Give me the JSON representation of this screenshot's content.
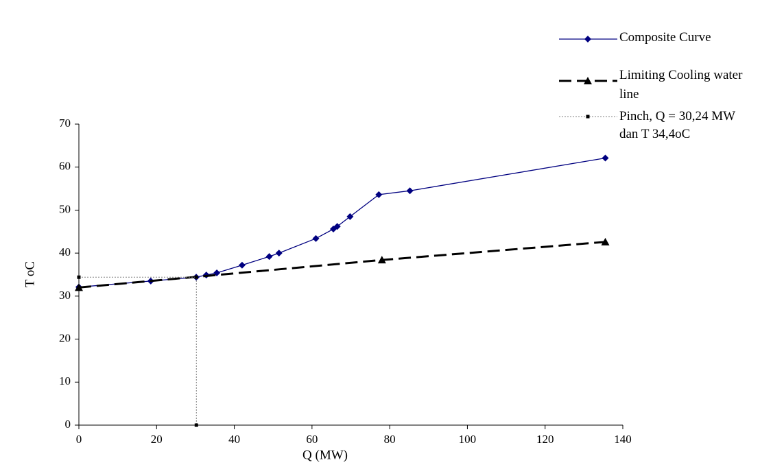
{
  "chart_data": {
    "type": "line",
    "x_label": "Q (MW)",
    "y_label": "T oC",
    "xlim": [
      0,
      140
    ],
    "xticks": [
      0,
      20,
      40,
      60,
      80,
      100,
      120,
      140
    ],
    "ylim": [
      0,
      70
    ],
    "yticks": [
      0,
      10,
      20,
      30,
      40,
      50,
      60,
      70
    ],
    "series": [
      {
        "name": "Composite Curve",
        "color": "#000080",
        "marker": "diamond",
        "dash": "solid",
        "x": [
          0,
          18.5,
          30.2,
          32.8,
          35.5,
          42,
          49,
          51.5,
          61,
          65.5,
          66.5,
          69.8,
          77.2,
          85.2,
          135.5
        ],
        "values": [
          32.1,
          33.5,
          34.4,
          34.9,
          35.4,
          37.2,
          39.2,
          40,
          43.4,
          45.6,
          46.2,
          48.5,
          53.6,
          54.5,
          62.1
        ]
      },
      {
        "name": "Limiting Cooling water line",
        "color": "#000000",
        "marker": "triangle",
        "dash": "dashed",
        "x": [
          0,
          78,
          135.5
        ],
        "values": [
          32,
          38.4,
          42.6
        ]
      },
      {
        "name": "Pinch, Q = 30,24 MW dan T 34,4oC",
        "color": "#808080",
        "marker": "square",
        "dash": "dotted",
        "x": [
          0,
          30.24,
          30.24
        ],
        "values": [
          34.4,
          34.4,
          0
        ]
      }
    ]
  }
}
